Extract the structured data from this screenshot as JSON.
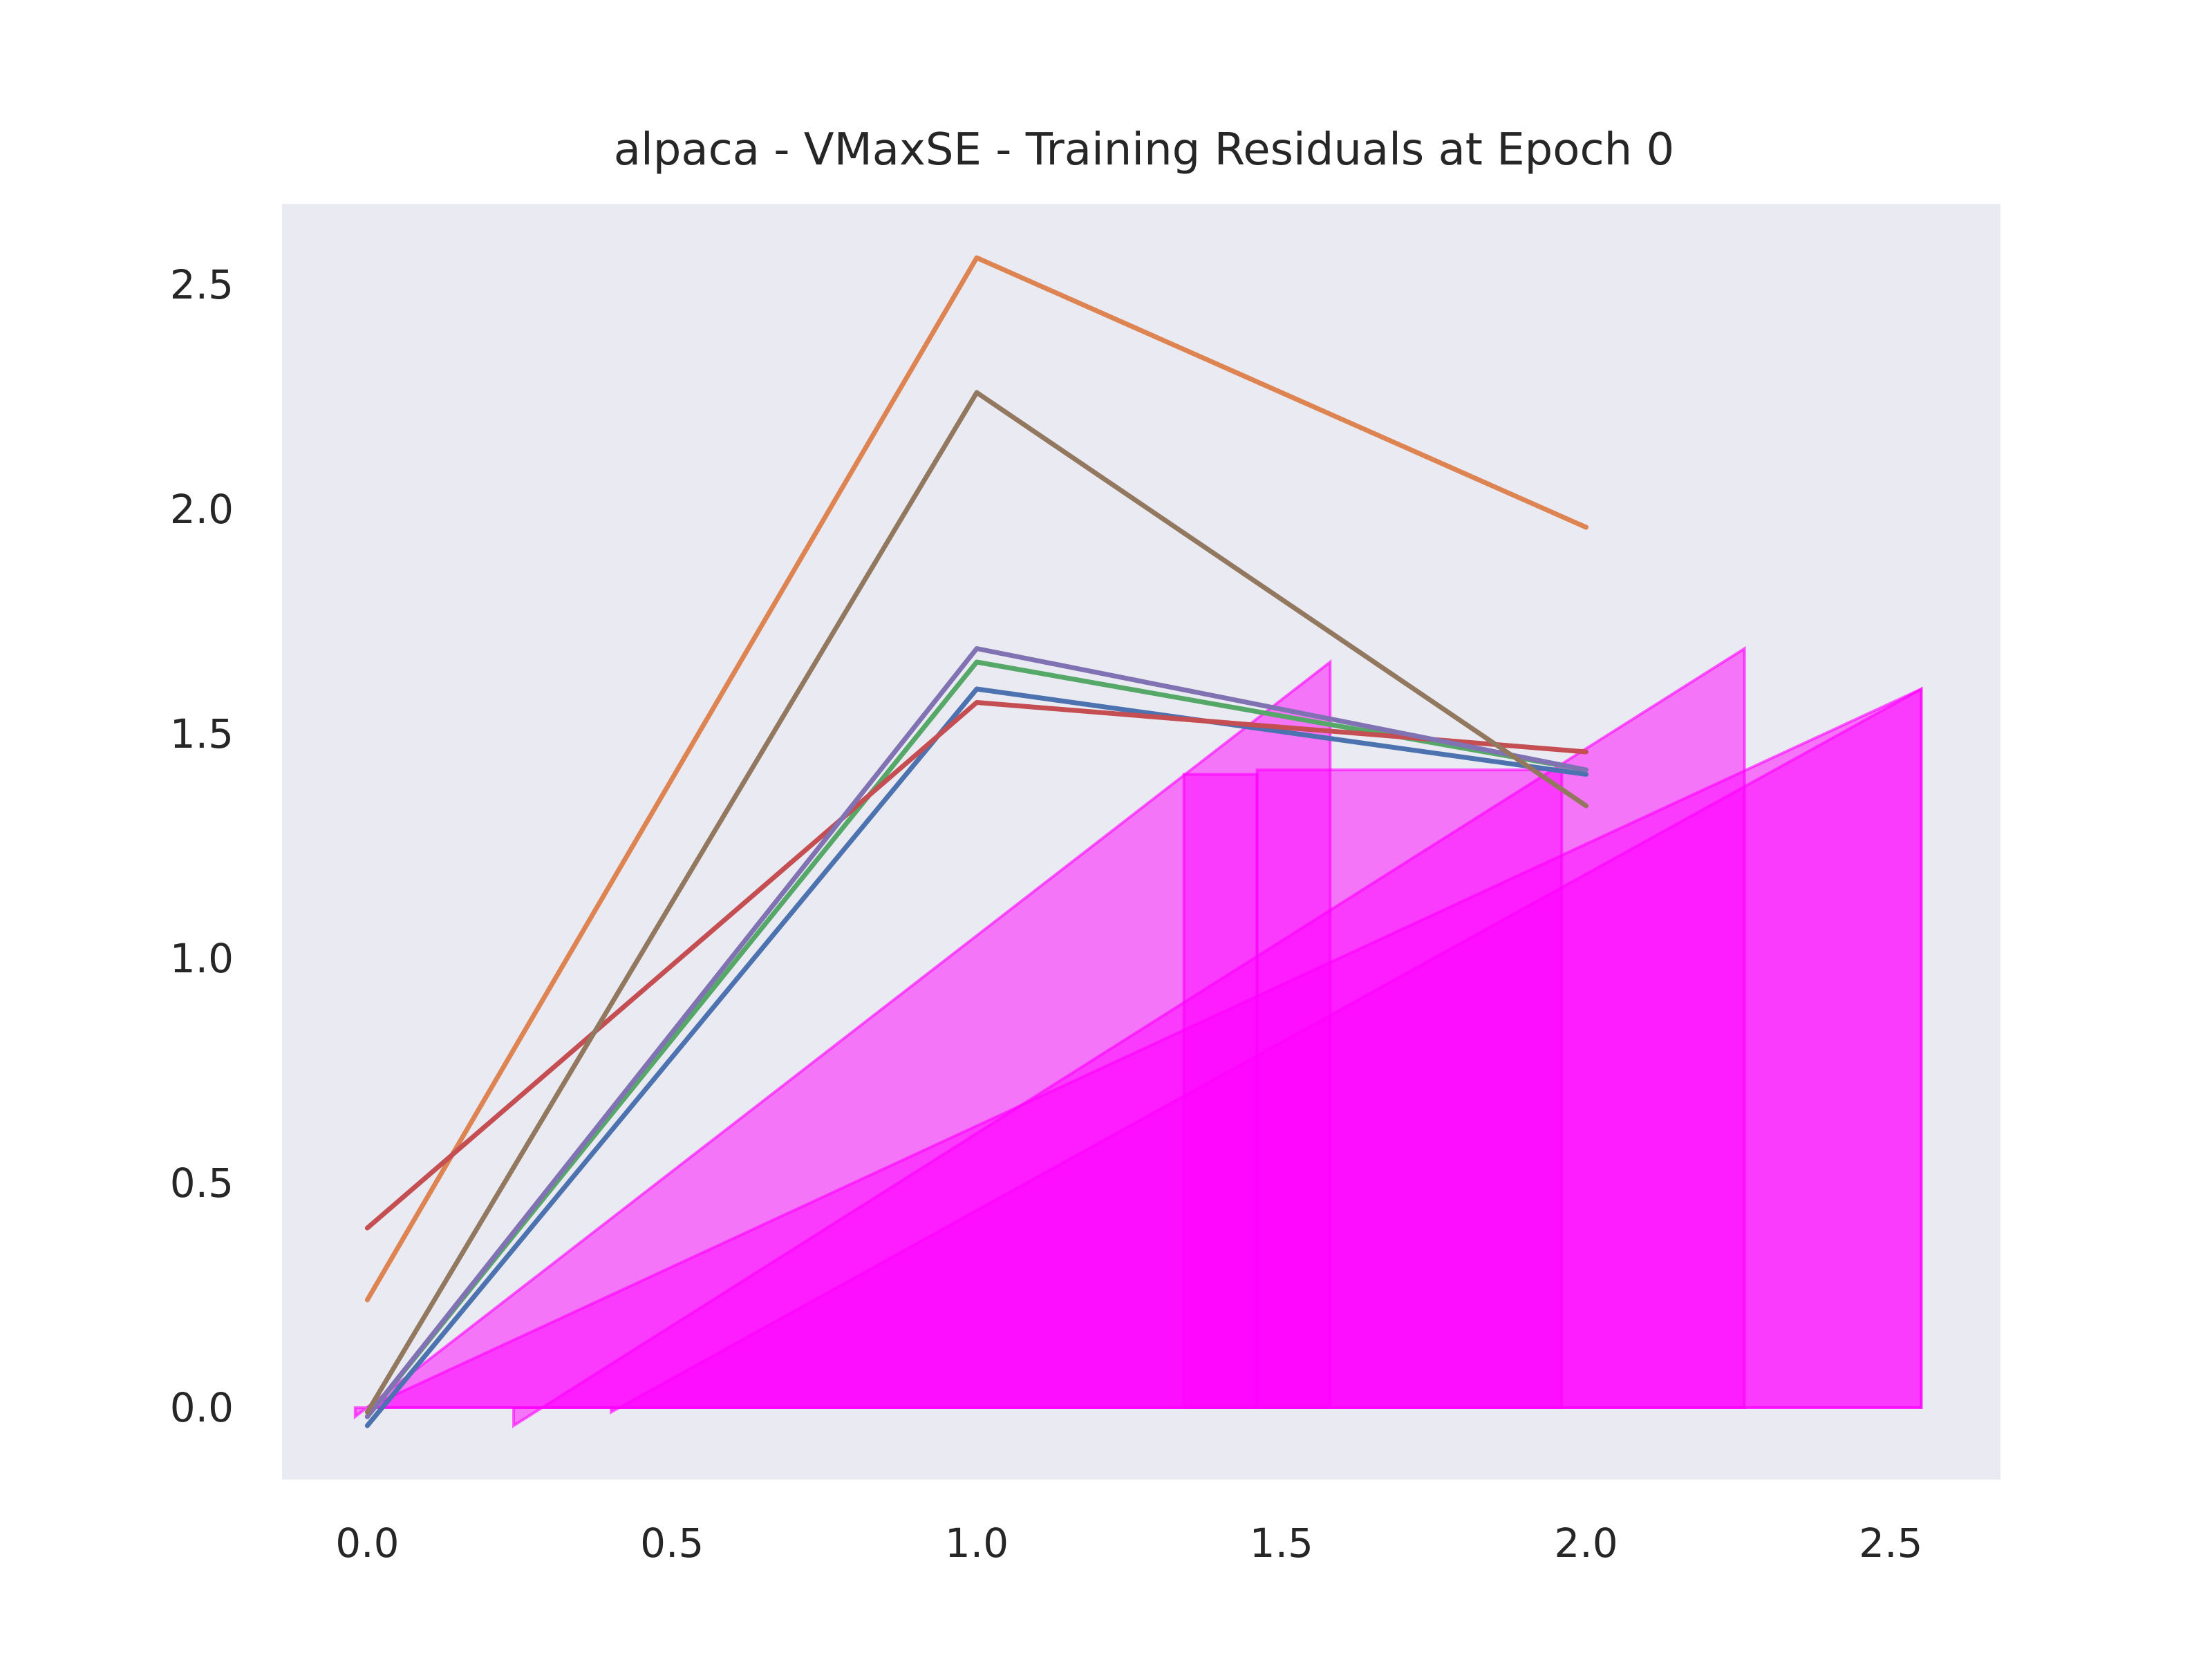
{
  "chart_data": {
    "type": "line",
    "title": "alpaca - VMaxSE - Training Residuals at Epoch 0",
    "xlabel": "",
    "ylabel": "",
    "xlim": [
      -0.14,
      2.68
    ],
    "ylim": [
      -0.16,
      2.68
    ],
    "xticks": [
      0.0,
      0.5,
      1.0,
      1.5,
      2.0,
      2.5
    ],
    "xtick_labels": [
      "0.0",
      "0.5",
      "1.0",
      "1.5",
      "2.0",
      "2.5"
    ],
    "yticks": [
      0.0,
      0.5,
      1.0,
      1.5,
      2.0,
      2.5
    ],
    "ytick_labels": [
      "0.0",
      "0.5",
      "1.0",
      "1.5",
      "2.0",
      "2.5"
    ],
    "grid": false,
    "legend": "none",
    "background_color": "#eaeaf2",
    "series": [
      {
        "color": "#4c72b0",
        "x": [
          0,
          1,
          2
        ],
        "y": [
          -0.04,
          1.6,
          1.41
        ]
      },
      {
        "color": "#dd8452",
        "x": [
          0,
          1,
          2
        ],
        "y": [
          0.24,
          2.56,
          1.96
        ]
      },
      {
        "color": "#55a868",
        "x": [
          0,
          1,
          2
        ],
        "y": [
          -0.02,
          1.66,
          1.42
        ]
      },
      {
        "color": "#c44e52",
        "x": [
          0,
          1,
          2
        ],
        "y": [
          0.4,
          1.57,
          1.46
        ]
      },
      {
        "color": "#8172b3",
        "x": [
          0,
          1,
          2
        ],
        "y": [
          -0.02,
          1.69,
          1.42
        ]
      },
      {
        "color": "#937860",
        "x": [
          0,
          1,
          2
        ],
        "y": [
          -0.01,
          2.26,
          1.34
        ]
      }
    ],
    "filled_regions": [
      {
        "color": "#ff00ff",
        "x": [
          -0.02,
          1.58,
          1.58,
          -0.02
        ],
        "y": [
          -0.02,
          1.66,
          0.0,
          0.0
        ]
      },
      {
        "color": "#ff00ff",
        "x": [
          0.24,
          2.26,
          2.26,
          0.24
        ],
        "y": [
          -0.04,
          1.69,
          0.0,
          0.0
        ]
      },
      {
        "color": "#ff00ff",
        "x": [
          0.4,
          2.55,
          2.55,
          0.4
        ],
        "y": [
          -0.01,
          1.6,
          0.0,
          0.0
        ]
      },
      {
        "color": "#ff00ff",
        "x": [
          0.0,
          2.55,
          2.55,
          0.0
        ],
        "y": [
          0.0,
          1.6,
          0.0,
          0.0
        ]
      },
      {
        "color": "#ff00ff",
        "x": [
          1.34,
          1.46,
          1.46,
          1.34
        ],
        "y": [
          1.41,
          1.41,
          0.0,
          0.0
        ]
      },
      {
        "color": "#ff00ff",
        "x": [
          1.46,
          1.96,
          1.96,
          1.46
        ],
        "y": [
          1.42,
          1.42,
          0.0,
          0.0
        ]
      }
    ]
  }
}
